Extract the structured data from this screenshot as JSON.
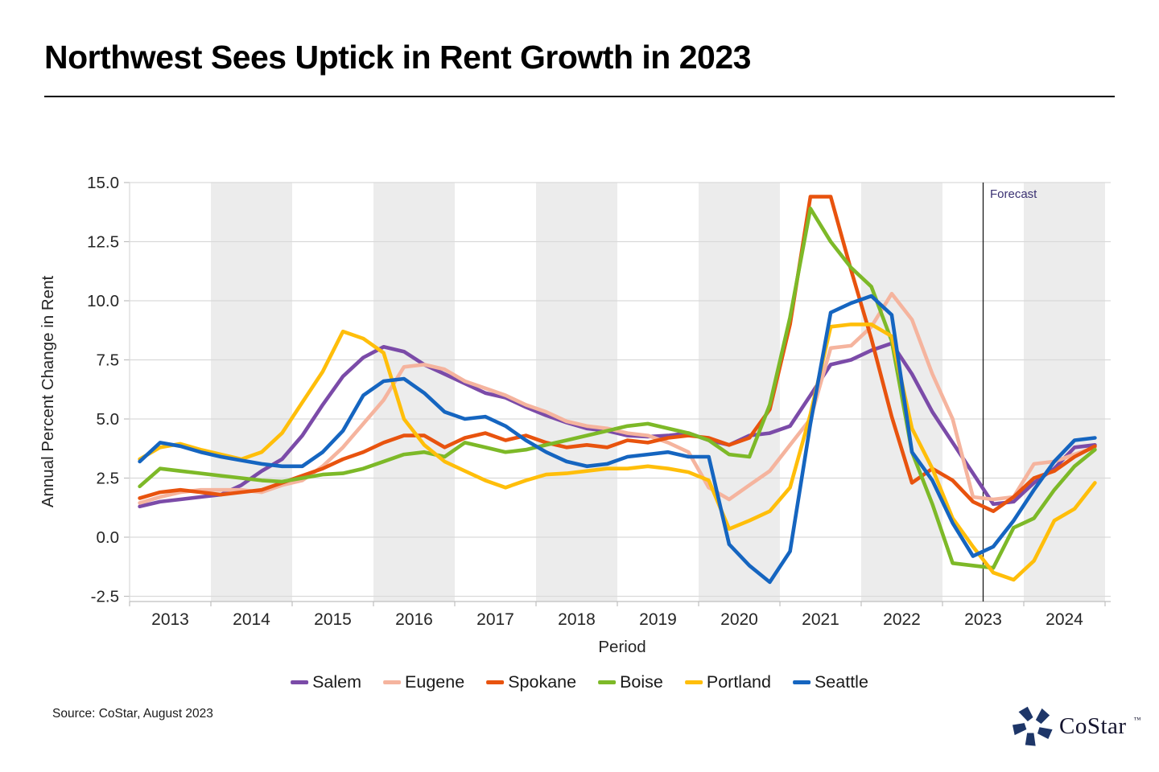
{
  "header": {
    "title": "Northwest Sees Uptick in Rent Growth in 2023"
  },
  "footer": {
    "source": "Source: CoStar, August 2023",
    "logo_text": "CoStar",
    "logo_tm": "™"
  },
  "chart_data": {
    "type": "line",
    "title": "Northwest Sees Uptick in Rent Growth in 2023",
    "xlabel": "Period",
    "ylabel": "Annual Percent Change in Rent",
    "ylim": [
      -2.7,
      15.0
    ],
    "yticks": [
      15.0,
      12.5,
      10.0,
      7.5,
      5.0,
      2.5,
      0.0,
      -2.5
    ],
    "ytick_labels": [
      "15.0",
      "12.5",
      "10.0",
      "7.5",
      "5.0",
      "2.5",
      "0.0",
      "-2.5"
    ],
    "x_years": [
      2013,
      2014,
      2015,
      2016,
      2017,
      2018,
      2019,
      2020,
      2021,
      2022,
      2023,
      2024
    ],
    "x_frequency": "quarterly",
    "x_first_period": "2013 Q1",
    "x_last_period": "2024 Q4",
    "shaded_years": [
      2014,
      2016,
      2018,
      2020,
      2022,
      2024
    ],
    "grid": true,
    "legend_position": "bottom",
    "forecast": {
      "x": 2023.5,
      "label": "Forecast",
      "color": "#3B3273"
    },
    "series": [
      {
        "name": "Salem",
        "color": "#7B4BA8",
        "values": [
          1.3,
          1.5,
          1.6,
          1.7,
          1.8,
          2.2,
          2.8,
          3.3,
          4.3,
          5.6,
          6.8,
          7.6,
          8.05,
          7.85,
          7.3,
          6.9,
          6.5,
          6.1,
          5.9,
          5.5,
          5.15,
          4.85,
          4.6,
          4.5,
          4.3,
          4.25,
          4.3,
          4.4,
          4.1,
          3.9,
          4.3,
          4.4,
          4.7,
          6.0,
          7.3,
          7.5,
          7.9,
          8.2,
          6.9,
          5.3,
          4.0,
          2.7,
          1.4,
          1.5,
          2.3,
          2.9,
          3.8,
          3.9
        ]
      },
      {
        "name": "Eugene",
        "color": "#F5B49E",
        "values": [
          1.45,
          1.7,
          1.9,
          2.0,
          2.0,
          2.0,
          1.9,
          2.2,
          2.4,
          3.0,
          3.8,
          4.8,
          5.8,
          7.2,
          7.3,
          7.1,
          6.6,
          6.3,
          6.0,
          5.6,
          5.3,
          4.9,
          4.7,
          4.6,
          4.4,
          4.3,
          4.0,
          3.6,
          2.1,
          1.6,
          2.2,
          2.8,
          3.9,
          5.0,
          8.0,
          8.1,
          8.9,
          10.3,
          9.2,
          6.9,
          5.0,
          1.7,
          1.6,
          1.7,
          3.1,
          3.2,
          3.5,
          3.8
        ]
      },
      {
        "name": "Spokane",
        "color": "#E8530E",
        "values": [
          1.65,
          1.9,
          2.0,
          1.9,
          1.8,
          1.9,
          2.0,
          2.3,
          2.6,
          2.9,
          3.3,
          3.6,
          4.0,
          4.3,
          4.3,
          3.8,
          4.2,
          4.4,
          4.1,
          4.3,
          4.0,
          3.8,
          3.9,
          3.8,
          4.1,
          4.0,
          4.2,
          4.3,
          4.2,
          3.9,
          4.2,
          5.4,
          9.0,
          14.4,
          14.4,
          11.3,
          8.4,
          5.1,
          2.3,
          2.9,
          2.4,
          1.5,
          1.1,
          1.7,
          2.5,
          2.8,
          3.4,
          3.85
        ]
      },
      {
        "name": "Boise",
        "color": "#7DB928",
        "values": [
          2.15,
          2.9,
          2.8,
          2.7,
          2.6,
          2.5,
          2.4,
          2.35,
          2.5,
          2.65,
          2.7,
          2.9,
          3.2,
          3.5,
          3.6,
          3.4,
          4.0,
          3.8,
          3.6,
          3.7,
          3.9,
          4.1,
          4.3,
          4.5,
          4.7,
          4.8,
          4.6,
          4.4,
          4.1,
          3.5,
          3.4,
          5.6,
          9.3,
          13.9,
          12.5,
          11.4,
          10.6,
          8.3,
          3.6,
          1.4,
          -1.1,
          -1.2,
          -1.3,
          0.4,
          0.8,
          2.0,
          3.0,
          3.7
        ]
      },
      {
        "name": "Portland",
        "color": "#FFBE0A",
        "values": [
          3.3,
          3.8,
          3.95,
          3.7,
          3.5,
          3.3,
          3.6,
          4.4,
          5.7,
          7.0,
          8.7,
          8.4,
          7.8,
          5.0,
          3.9,
          3.2,
          2.8,
          2.4,
          2.1,
          2.4,
          2.65,
          2.7,
          2.8,
          2.9,
          2.9,
          3.0,
          2.9,
          2.75,
          2.4,
          0.35,
          0.7,
          1.1,
          2.1,
          5.2,
          8.9,
          9.0,
          9.0,
          8.5,
          4.6,
          2.9,
          0.8,
          -0.4,
          -1.5,
          -1.8,
          -1.0,
          0.7,
          1.2,
          2.3
        ]
      },
      {
        "name": "Seattle",
        "color": "#1565C0",
        "values": [
          3.2,
          4.0,
          3.85,
          3.6,
          3.4,
          3.25,
          3.1,
          3.0,
          3.0,
          3.6,
          4.5,
          6.0,
          6.6,
          6.7,
          6.1,
          5.3,
          5.0,
          5.1,
          4.7,
          4.1,
          3.6,
          3.2,
          3.0,
          3.1,
          3.4,
          3.5,
          3.6,
          3.4,
          3.4,
          -0.3,
          -1.2,
          -1.9,
          -0.6,
          4.8,
          9.5,
          9.9,
          10.2,
          9.4,
          3.6,
          2.4,
          0.6,
          -0.8,
          -0.4,
          0.7,
          2.0,
          3.2,
          4.1,
          4.2
        ]
      }
    ],
    "colors": {
      "band": "#ECECEC",
      "gridline": "#D9D9D9",
      "axis": "#BFBFBF",
      "tick_text": "#262626",
      "forecast_line": "#1a1a1a",
      "logo_navy": "#1E3668"
    }
  }
}
